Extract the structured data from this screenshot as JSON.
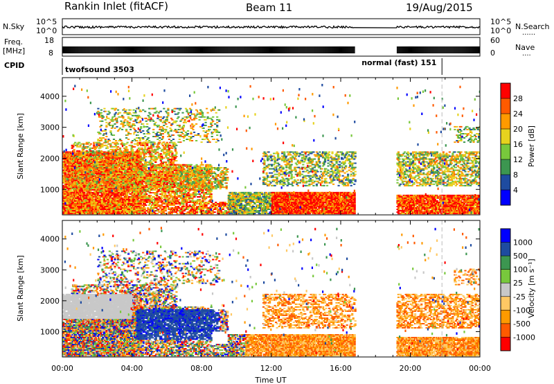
{
  "header": {
    "title": "Rankin Inlet (fitACF)",
    "beam": "Beam 11",
    "date": "19/Aug/2015"
  },
  "strip_labels": {
    "nsky": "N.Sky",
    "nsearch": "N.Search",
    "freq_line1": "Freq.",
    "freq_line2": "[MHz]",
    "nave": "Nave",
    "cpid": "CPID",
    "nsky_ticks": [
      "10^5",
      "10^0"
    ],
    "nsearch_ticks": [
      "10^5",
      "10^0"
    ],
    "freq_ticks": [
      "18",
      "8"
    ],
    "nave_ticks": [
      "60",
      "0"
    ]
  },
  "cpid_segments": [
    {
      "label": "twofsound 3503",
      "start_hr": 0.0,
      "end_hr": 21.82
    },
    {
      "label": "normal (fast) 151",
      "start_hr": 21.82,
      "end_hr": 24.0
    }
  ],
  "chart_data": [
    {
      "type": "heatmap",
      "panel": "power",
      "xlabel": "",
      "ylabel": "Slant Range [km]",
      "xlim": [
        0,
        24
      ],
      "ylim": [
        180,
        4600
      ],
      "yticks": [
        1000,
        2000,
        3000,
        4000
      ],
      "colorbar_label": "Power [dB]",
      "colorbar_ticks": [
        "28",
        "24",
        "20",
        "16",
        "12",
        "8",
        "4"
      ],
      "colors": [
        "#ff0000",
        "#ff5a00",
        "#ff9a00",
        "#e6d21e",
        "#78c83c",
        "#3c9650",
        "#1e4ba0",
        "#0000ff"
      ],
      "data_gaps_hr": [
        [
          16.8,
          19.2
        ]
      ]
    },
    {
      "type": "heatmap",
      "panel": "velocity",
      "xlabel": "Time UT",
      "ylabel": "Slant Range [km]",
      "xlim": [
        0,
        24
      ],
      "ylim": [
        180,
        4600
      ],
      "yticks": [
        1000,
        2000,
        3000,
        4000
      ],
      "colorbar_label": "Velocity [m s⁻¹]",
      "colorbar_ticks": [
        "1000",
        "500",
        "100",
        "25",
        "-25",
        "-100",
        "-500",
        "-1000"
      ],
      "colors": [
        "#0000ff",
        "#1e4ba0",
        "#3c9650",
        "#78c83c",
        "#c8c8c8",
        "#ffc864",
        "#ff9a00",
        "#ff5a00",
        "#ff0000"
      ],
      "xticks": [
        "00:00",
        "04:00",
        "08:00",
        "12:00",
        "16:00",
        "20:00",
        "00:00"
      ],
      "data_gaps_hr": [
        [
          16.8,
          19.2
        ]
      ]
    }
  ]
}
